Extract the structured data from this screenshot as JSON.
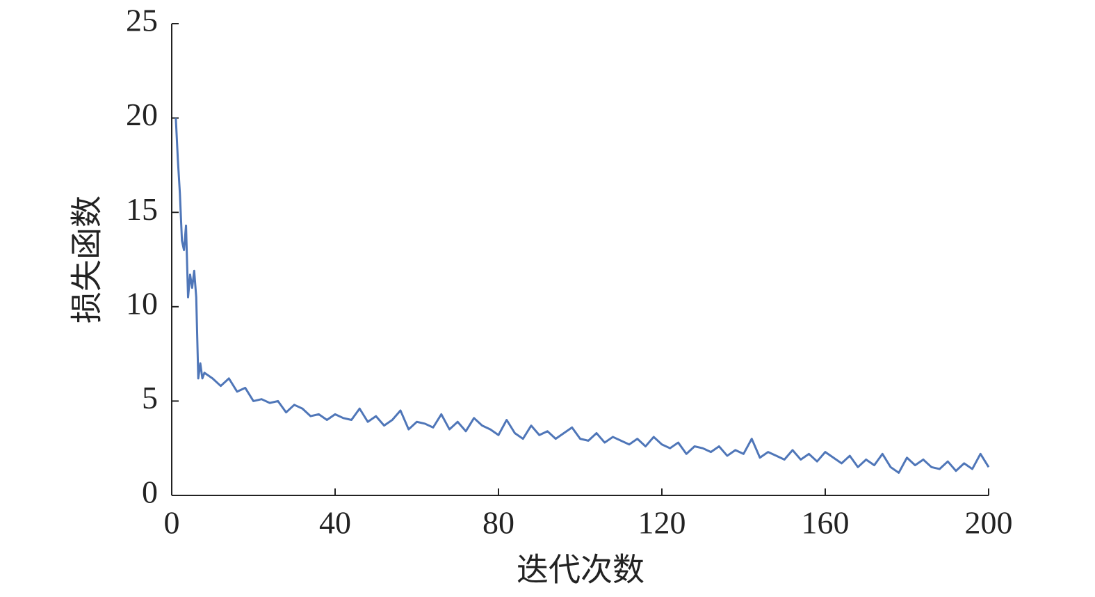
{
  "chart_data": {
    "type": "line",
    "x_label": "迭代次数",
    "y_label": "损失函数",
    "x": [
      1,
      1.5,
      2,
      2.5,
      3,
      3.5,
      4,
      4.5,
      5,
      5.5,
      6,
      6.5,
      7,
      7.5,
      8,
      10,
      12,
      14,
      16,
      18,
      20,
      22,
      24,
      26,
      28,
      30,
      32,
      34,
      36,
      38,
      40,
      42,
      44,
      46,
      48,
      50,
      52,
      54,
      56,
      58,
      60,
      62,
      64,
      66,
      68,
      70,
      72,
      74,
      76,
      78,
      80,
      82,
      84,
      86,
      88,
      90,
      92,
      94,
      96,
      98,
      100,
      102,
      104,
      106,
      108,
      110,
      112,
      114,
      116,
      118,
      120,
      122,
      124,
      126,
      128,
      130,
      132,
      134,
      136,
      138,
      140,
      142,
      144,
      146,
      148,
      150,
      152,
      154,
      156,
      158,
      160,
      162,
      164,
      166,
      168,
      170,
      172,
      174,
      176,
      178,
      180,
      182,
      184,
      186,
      188,
      190,
      192,
      194,
      196,
      198,
      200
    ],
    "series": [
      {
        "color": "#4f76b8",
        "values": [
          20,
          17.8,
          16,
          13.5,
          13,
          14.3,
          10.5,
          11.7,
          11,
          11.9,
          10.5,
          6.2,
          7,
          6.2,
          6.5,
          6.2,
          5.8,
          6.2,
          5.5,
          5.7,
          5.0,
          5.1,
          4.9,
          5.0,
          4.4,
          4.8,
          4.6,
          4.2,
          4.3,
          4.0,
          4.3,
          4.1,
          4.0,
          4.6,
          3.9,
          4.2,
          3.7,
          4.0,
          4.5,
          3.5,
          3.9,
          3.8,
          3.6,
          4.3,
          3.5,
          3.9,
          3.4,
          4.1,
          3.7,
          3.5,
          3.2,
          4.0,
          3.3,
          3.0,
          3.7,
          3.2,
          3.4,
          3.0,
          3.3,
          3.6,
          3.0,
          2.9,
          3.3,
          2.8,
          3.1,
          2.9,
          2.7,
          3.0,
          2.6,
          3.1,
          2.7,
          2.5,
          2.8,
          2.2,
          2.6,
          2.5,
          2.3,
          2.6,
          2.1,
          2.4,
          2.2,
          3.0,
          2.0,
          2.3,
          2.1,
          1.9,
          2.4,
          1.9,
          2.2,
          1.8,
          2.3,
          2.0,
          1.7,
          2.1,
          1.5,
          1.9,
          1.6,
          2.2,
          1.5,
          1.2,
          2.0,
          1.6,
          1.9,
          1.5,
          1.4,
          1.8,
          1.3,
          1.7,
          1.4,
          2.2,
          1.5
        ]
      }
    ],
    "xlim": [
      0,
      200
    ],
    "xticks": [
      0,
      40,
      80,
      120,
      160,
      200
    ],
    "ylim": [
      0,
      25
    ],
    "yticks": [
      0,
      5,
      10,
      15,
      20,
      25
    ]
  }
}
